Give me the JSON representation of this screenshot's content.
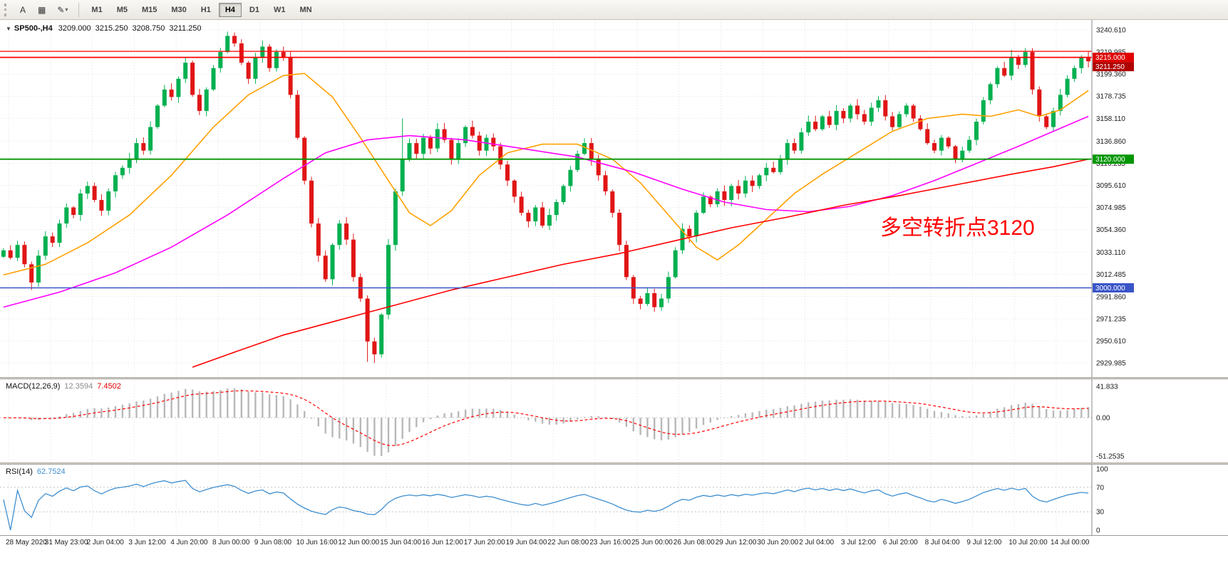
{
  "toolbar": {
    "tools": [
      {
        "name": "text-tool",
        "glyph": "A"
      },
      {
        "name": "objects-tool",
        "glyph": "▦"
      },
      {
        "name": "drawings-tool",
        "glyph": "✎",
        "caret": "▾"
      }
    ],
    "timeframes": [
      {
        "label": "M1"
      },
      {
        "label": "M5"
      },
      {
        "label": "M15"
      },
      {
        "label": "M30"
      },
      {
        "label": "H1"
      },
      {
        "label": "H4",
        "active": true
      },
      {
        "label": "D1"
      },
      {
        "label": "W1"
      },
      {
        "label": "MN"
      }
    ]
  },
  "header": {
    "collapse_glyph": "▼",
    "symbol_period": "SP500-,H4",
    "open": "3209.000",
    "high": "3215.250",
    "low": "3208.750",
    "close": "3211.250"
  },
  "annotation": {
    "text": "多空转折点3120",
    "color": "#ff0000",
    "font_size": 30
  },
  "hlines": [
    {
      "price": 3220.6,
      "color": "#ff0000",
      "width": 1.3
    },
    {
      "price": 3215.0,
      "color": "#ff0000",
      "width": 1.8
    },
    {
      "price": 3120.0,
      "color": "#009600",
      "width": 1.8
    },
    {
      "price": 3000.0,
      "color": "#3a55c8",
      "width": 1.5
    }
  ],
  "price_axis": {
    "labels": [
      "3240.610",
      "3219.985",
      "3199.360",
      "3178.735",
      "3158.110",
      "3136.860",
      "3116.235",
      "3095.610",
      "3074.985",
      "3054.360",
      "3033.110",
      "3012.485",
      "2991.860",
      "2971.235",
      "2950.610",
      "2929.985"
    ],
    "badges": [
      {
        "text": "3215.000",
        "price": 3215.0,
        "color": "#e00000"
      },
      {
        "text": "3211.250",
        "price": 3211.25,
        "color": "#b00000"
      },
      {
        "text": "3120.000",
        "price": 3120.0,
        "color": "#009600"
      },
      {
        "text": "3000.000",
        "price": 3000.0,
        "color": "#3a55c8"
      }
    ]
  },
  "time_axis": {
    "labels": [
      "28 May 2020",
      "31 May 23:00",
      "2 Jun 04:00",
      "3 Jun 12:00",
      "4 Jun 20:00",
      "8 Jun 00:00",
      "9 Jun 08:00",
      "10 Jun 16:00",
      "12 Jun 00:00",
      "15 Jun 04:00",
      "16 Jun 12:00",
      "17 Jun 20:00",
      "19 Jun 04:00",
      "22 Jun 08:00",
      "23 Jun 16:00",
      "25 Jun 00:00",
      "26 Jun 08:00",
      "29 Jun 12:00",
      "30 Jun 20:00",
      "2 Jul 04:00",
      "3 Jul 12:00",
      "6 Jul 20:00",
      "8 Jul 04:00",
      "9 Jul 12:00",
      "10 Jul 20:00",
      "14 Jul 00:00"
    ]
  },
  "chart_data": {
    "type": "candlestick",
    "symbol": "SP500-",
    "timeframe": "H4",
    "title": "SP500-,H4",
    "price_range": [
      2929.985,
      3240.61
    ],
    "colors": {
      "bull": "#00b050",
      "bear": "#e01515",
      "grid": "#e2e2e2",
      "background": "#ffffff"
    },
    "closes": [
      3035,
      3028,
      3040,
      3022,
      3005,
      3030,
      3048,
      3042,
      3060,
      3075,
      3068,
      3088,
      3095,
      3082,
      3072,
      3090,
      3105,
      3112,
      3120,
      3135,
      3128,
      3150,
      3170,
      3185,
      3178,
      3195,
      3210,
      3180,
      3165,
      3185,
      3205,
      3220,
      3235,
      3228,
      3210,
      3195,
      3215,
      3225,
      3205,
      3220,
      3215,
      3180,
      3140,
      3100,
      3060,
      3030,
      3008,
      3040,
      3060,
      3045,
      3010,
      2990,
      2950,
      2938,
      2975,
      3040,
      3090,
      3120,
      3135,
      3125,
      3140,
      3130,
      3148,
      3138,
      3120,
      3135,
      3150,
      3142,
      3128,
      3140,
      3132,
      3115,
      3100,
      3085,
      3070,
      3062,
      3075,
      3058,
      3068,
      3080,
      3095,
      3110,
      3125,
      3135,
      3120,
      3105,
      3090,
      3070,
      3040,
      3010,
      2990,
      2985,
      2995,
      2982,
      2990,
      3010,
      3035,
      3055,
      3048,
      3070,
      3085,
      3078,
      3090,
      3082,
      3095,
      3088,
      3100,
      3095,
      3105,
      3112,
      3108,
      3120,
      3135,
      3128,
      3145,
      3155,
      3148,
      3160,
      3152,
      3165,
      3158,
      3170,
      3162,
      3155,
      3168,
      3175,
      3160,
      3150,
      3162,
      3170,
      3158,
      3148,
      3135,
      3128,
      3140,
      3132,
      3120,
      3128,
      3138,
      3155,
      3175,
      3190,
      3205,
      3198,
      3215,
      3208,
      3220,
      3185,
      3160,
      3150,
      3165,
      3180,
      3195,
      3205,
      3215,
      3211.25
    ],
    "wick_overrides": {
      "4": {
        "low": 2998
      },
      "32": {
        "high": 3239
      },
      "52": {
        "low": 2931
      },
      "53": {
        "low": 2930
      },
      "57": {
        "high": 3158
      },
      "144": {
        "high": 3222
      }
    },
    "ma_lines": [
      {
        "name": "ma-fast-orange",
        "color": "#ffa000",
        "points": [
          [
            0,
            3012
          ],
          [
            6,
            3022
          ],
          [
            12,
            3042
          ],
          [
            18,
            3068
          ],
          [
            24,
            3105
          ],
          [
            30,
            3150
          ],
          [
            35,
            3180
          ],
          [
            40,
            3198
          ],
          [
            43,
            3200
          ],
          [
            47,
            3178
          ],
          [
            51,
            3140
          ],
          [
            55,
            3100
          ],
          [
            58,
            3070
          ],
          [
            61,
            3058
          ],
          [
            64,
            3072
          ],
          [
            68,
            3105
          ],
          [
            72,
            3126
          ],
          [
            77,
            3134
          ],
          [
            82,
            3134
          ],
          [
            87,
            3120
          ],
          [
            91,
            3098
          ],
          [
            95,
            3068
          ],
          [
            99,
            3038
          ],
          [
            102,
            3026
          ],
          [
            105,
            3040
          ],
          [
            109,
            3064
          ],
          [
            113,
            3088
          ],
          [
            117,
            3106
          ],
          [
            122,
            3126
          ],
          [
            127,
            3146
          ],
          [
            132,
            3158
          ],
          [
            137,
            3162
          ],
          [
            141,
            3160
          ],
          [
            145,
            3166
          ],
          [
            148,
            3160
          ],
          [
            151,
            3166
          ],
          [
            155,
            3184
          ]
        ]
      },
      {
        "name": "ma-mid-magenta",
        "color": "#ff00ff",
        "points": [
          [
            0,
            2982
          ],
          [
            8,
            2996
          ],
          [
            16,
            3014
          ],
          [
            24,
            3038
          ],
          [
            32,
            3068
          ],
          [
            40,
            3102
          ],
          [
            46,
            3126
          ],
          [
            52,
            3138
          ],
          [
            58,
            3142
          ],
          [
            66,
            3138
          ],
          [
            74,
            3130
          ],
          [
            82,
            3122
          ],
          [
            90,
            3108
          ],
          [
            97,
            3092
          ],
          [
            103,
            3080
          ],
          [
            109,
            3073
          ],
          [
            115,
            3071
          ],
          [
            121,
            3076
          ],
          [
            127,
            3086
          ],
          [
            133,
            3100
          ],
          [
            139,
            3116
          ],
          [
            145,
            3132
          ],
          [
            150,
            3146
          ],
          [
            155,
            3160
          ]
        ]
      },
      {
        "name": "ma-slow-red",
        "color": "#ff0000",
        "points": [
          [
            27,
            2926
          ],
          [
            33,
            2940
          ],
          [
            40,
            2956
          ],
          [
            48,
            2970
          ],
          [
            56,
            2984
          ],
          [
            64,
            2998
          ],
          [
            72,
            3010
          ],
          [
            80,
            3022
          ],
          [
            88,
            3032
          ],
          [
            96,
            3044
          ],
          [
            104,
            3056
          ],
          [
            112,
            3066
          ],
          [
            120,
            3077
          ],
          [
            128,
            3086
          ],
          [
            136,
            3096
          ],
          [
            144,
            3106
          ],
          [
            150,
            3113
          ],
          [
            155,
            3120
          ]
        ]
      }
    ],
    "indicators": {
      "macd": {
        "label": "MACD(12,26,9)",
        "value_main": "12.3594",
        "value_signal": "7.4502",
        "range": [
          -51.2535,
          41.833
        ],
        "axis": [
          "41.833",
          "0.00",
          "-51.2535"
        ],
        "histogram_color": "#b8b8b8",
        "signal_color": "#ff0000"
      },
      "rsi": {
        "label": "RSI(14)",
        "value": "62.7524",
        "period": 14,
        "levels": [
          70,
          30
        ],
        "axis": [
          "100",
          "70",
          "30",
          "0"
        ],
        "line_color": "#3e8ed0"
      }
    }
  }
}
